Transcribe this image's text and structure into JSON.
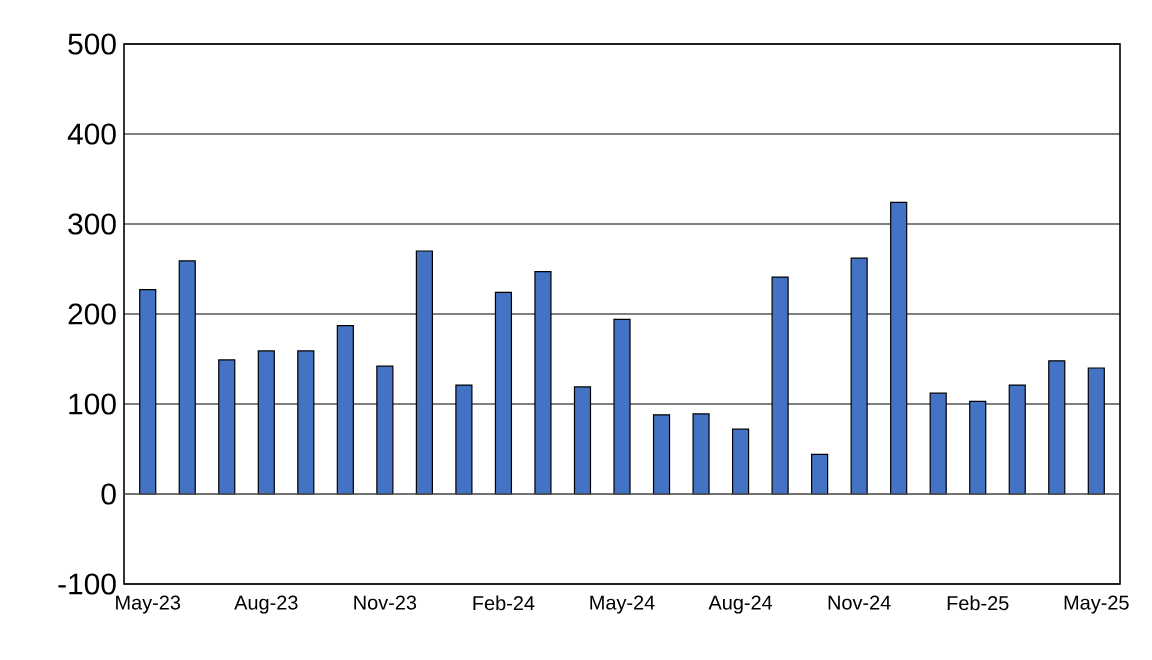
{
  "chart_data": {
    "type": "bar",
    "categories": [
      "May-23",
      null,
      null,
      "Aug-23",
      null,
      null,
      "Nov-23",
      null,
      null,
      "Feb-24",
      null,
      null,
      "May-24",
      null,
      null,
      "Aug-24",
      null,
      null,
      "Nov-24",
      null,
      null,
      "Feb-25",
      null,
      null,
      "May-25"
    ],
    "values": [
      227,
      259,
      149,
      159,
      159,
      187,
      142,
      270,
      121,
      224,
      247,
      119,
      194,
      88,
      89,
      72,
      241,
      44,
      262,
      324,
      112,
      103,
      121,
      148,
      140
    ],
    "color": "#4472c4",
    "ylim": [
      -100,
      500
    ],
    "yticks": [
      -100,
      0,
      100,
      200,
      300,
      400,
      500
    ],
    "grid": "y"
  }
}
